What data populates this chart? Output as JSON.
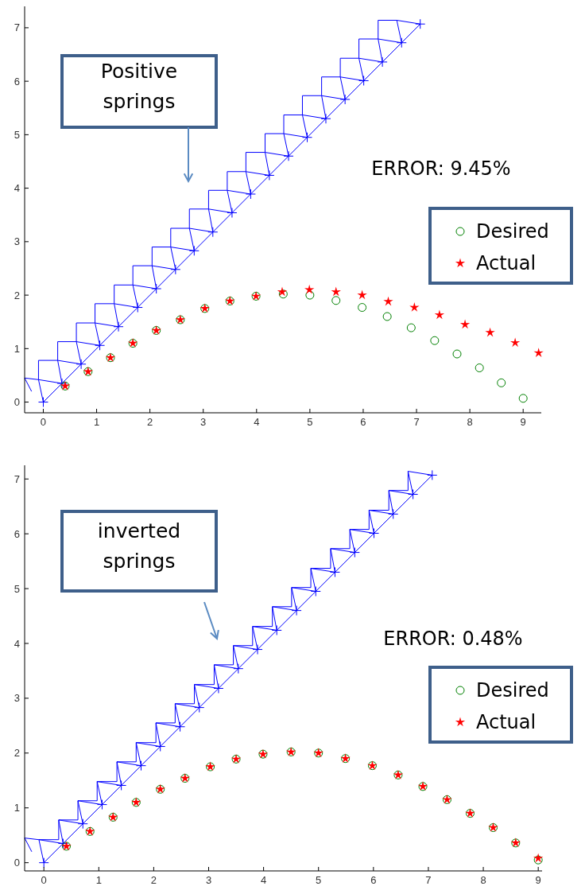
{
  "chart_data": [
    {
      "type": "scatter",
      "xlim": [
        -0.35,
        9.34
      ],
      "ylim": [
        -0.2,
        7.4
      ],
      "xticks": [
        0,
        1,
        2,
        3,
        4,
        5,
        6,
        7,
        8,
        9
      ],
      "yticks": [
        0,
        1,
        2,
        3,
        4,
        5,
        6,
        7
      ],
      "legend": "right",
      "annotations": [
        "Positive springs",
        "ERROR: 9.45%"
      ],
      "series": [
        {
          "type": "line",
          "color": "#0000ff",
          "marker": "cross",
          "x": [
            0,
            0.35,
            0.71,
            1.06,
            1.41,
            1.77,
            2.12,
            2.48,
            2.83,
            3.18,
            3.54,
            3.89,
            4.24,
            4.6,
            4.95,
            5.3,
            5.66,
            6.01,
            6.36,
            6.72,
            7.07
          ],
          "values": [
            0,
            0.35,
            0.71,
            1.06,
            1.41,
            1.77,
            2.12,
            2.48,
            2.83,
            3.18,
            3.54,
            3.89,
            4.24,
            4.6,
            4.95,
            5.3,
            5.66,
            6.01,
            6.36,
            6.72,
            7.07
          ]
        },
        {
          "type": "line",
          "color": "#0000ff",
          "marker": "none",
          "x": [
            -0.22,
            -0.35,
            -0.09,
            -0.09,
            0.27,
            0.27,
            0.62,
            0.62,
            0.97,
            0.97,
            1.33,
            1.33,
            1.68,
            1.68,
            2.04,
            2.04,
            2.39,
            2.39,
            2.74,
            2.74,
            3.1,
            3.1,
            3.45,
            3.45,
            3.8,
            3.8,
            4.16,
            4.16,
            4.51,
            4.51,
            4.86,
            4.86,
            5.22,
            5.22,
            5.57,
            5.57,
            5.92,
            5.92,
            6.28,
            6.28,
            6.63
          ],
          "values": [
            0.2,
            0.45,
            0.42,
            0.78,
            0.78,
            1.13,
            1.13,
            1.48,
            1.48,
            1.84,
            1.84,
            2.19,
            2.19,
            2.55,
            2.55,
            2.9,
            2.9,
            3.25,
            3.25,
            3.61,
            3.61,
            3.96,
            3.96,
            4.31,
            4.31,
            4.67,
            4.67,
            5.02,
            5.02,
            5.37,
            5.37,
            5.73,
            5.73,
            6.08,
            6.08,
            6.43,
            6.43,
            6.79,
            6.79,
            7.14,
            7.14
          ]
        },
        {
          "type": "line",
          "color": "#0000ff",
          "marker": "none",
          "x": [
            0,
            -0.09,
            0.35,
            0.27,
            0.71,
            0.62,
            1.06,
            0.97,
            1.41,
            1.33,
            1.77,
            1.68,
            2.12,
            2.04,
            2.48,
            2.39,
            2.83,
            2.74,
            3.18,
            3.1,
            3.54,
            3.45,
            3.89,
            3.8,
            4.24,
            4.16,
            4.6,
            4.51,
            4.95,
            4.86,
            5.3,
            5.22,
            5.66,
            5.57,
            6.01,
            5.92,
            6.36,
            6.28,
            6.72,
            6.63,
            7.07
          ],
          "values": [
            0,
            0.42,
            0.35,
            0.78,
            0.71,
            1.13,
            1.06,
            1.48,
            1.41,
            1.84,
            1.77,
            2.19,
            2.12,
            2.55,
            2.48,
            2.9,
            2.83,
            3.25,
            3.18,
            3.61,
            3.54,
            3.96,
            3.89,
            4.31,
            4.24,
            4.67,
            4.6,
            5.02,
            4.95,
            5.37,
            5.3,
            5.73,
            5.66,
            6.08,
            6.01,
            6.43,
            6.36,
            6.79,
            6.72,
            7.14,
            7.07
          ]
        },
        {
          "type": "scatter",
          "name": "Desired",
          "color": "#008000",
          "marker": "circle",
          "x": [
            0.41,
            0.84,
            1.26,
            1.68,
            2.12,
            2.57,
            3.03,
            3.5,
            3.99,
            4.5,
            5.0,
            5.49,
            5.98,
            6.45,
            6.9,
            7.34,
            7.76,
            8.18,
            8.59,
            9.0
          ],
          "values": [
            0.3,
            0.57,
            0.83,
            1.1,
            1.34,
            1.54,
            1.75,
            1.89,
            1.98,
            2.02,
            2.0,
            1.9,
            1.77,
            1.6,
            1.39,
            1.15,
            0.9,
            0.64,
            0.36,
            0.07
          ]
        },
        {
          "type": "scatter",
          "name": "Actual",
          "color": "#ff0000",
          "marker": "star",
          "x": [
            0.41,
            0.84,
            1.26,
            1.68,
            2.12,
            2.57,
            3.03,
            3.5,
            3.99,
            4.48,
            4.99,
            5.49,
            5.98,
            6.47,
            6.96,
            7.43,
            7.91,
            8.38,
            8.85,
            9.29
          ],
          "values": [
            0.3,
            0.57,
            0.83,
            1.1,
            1.34,
            1.54,
            1.75,
            1.89,
            1.98,
            2.06,
            2.1,
            2.06,
            2.0,
            1.88,
            1.77,
            1.63,
            1.45,
            1.3,
            1.11,
            0.92
          ]
        }
      ]
    },
    {
      "type": "scatter",
      "xlim": [
        -0.35,
        9.07
      ],
      "ylim": [
        -0.15,
        7.25
      ],
      "xticks": [
        0,
        1,
        2,
        3,
        4,
        5,
        6,
        7,
        8,
        9
      ],
      "yticks": [
        0,
        1,
        2,
        3,
        4,
        5,
        6,
        7
      ],
      "legend": "right",
      "annotations": [
        "inverted springs",
        "ERROR: 0.48%"
      ],
      "series": [
        {
          "type": "line",
          "color": "#0000ff",
          "marker": "cross",
          "x": [
            0,
            0.35,
            0.71,
            1.06,
            1.41,
            1.77,
            2.12,
            2.48,
            2.83,
            3.18,
            3.54,
            3.89,
            4.24,
            4.6,
            4.95,
            5.3,
            5.66,
            6.01,
            6.36,
            6.72,
            7.07
          ],
          "values": [
            0,
            0.35,
            0.71,
            1.06,
            1.41,
            1.77,
            2.12,
            2.48,
            2.83,
            3.18,
            3.54,
            3.89,
            4.24,
            4.6,
            4.95,
            5.3,
            5.66,
            6.01,
            6.36,
            6.72,
            7.07
          ]
        },
        {
          "type": "line",
          "color": "#0000ff",
          "marker": "none",
          "x": [
            -0.22,
            -0.35,
            -0.09,
            0.27,
            0.27,
            0.62,
            0.62,
            0.97,
            0.97,
            1.33,
            1.33,
            1.68,
            1.68,
            2.04,
            2.04,
            2.39,
            2.39,
            2.74,
            2.74,
            3.1,
            3.1,
            3.45,
            3.45,
            3.8,
            3.8,
            4.16,
            4.16,
            4.51,
            4.51,
            4.86,
            4.86,
            5.22,
            5.22,
            5.57,
            5.57,
            5.92,
            5.92,
            6.28,
            6.28,
            6.63,
            6.63
          ],
          "values": [
            0.2,
            0.45,
            0.42,
            0.42,
            0.78,
            0.78,
            1.13,
            1.13,
            1.48,
            1.48,
            1.84,
            1.84,
            2.19,
            2.19,
            2.55,
            2.55,
            2.9,
            2.9,
            3.25,
            3.25,
            3.61,
            3.61,
            3.96,
            3.96,
            4.31,
            4.31,
            4.67,
            4.67,
            5.02,
            5.02,
            5.37,
            5.37,
            5.73,
            5.73,
            6.08,
            6.08,
            6.43,
            6.43,
            6.79,
            6.79,
            7.14
          ]
        },
        {
          "type": "line",
          "color": "#0000ff",
          "marker": "none",
          "x": [
            0,
            -0.09,
            0.35,
            0.27,
            0.71,
            0.62,
            1.06,
            0.97,
            1.41,
            1.33,
            1.77,
            1.68,
            2.12,
            2.04,
            2.48,
            2.39,
            2.83,
            2.74,
            3.18,
            3.1,
            3.54,
            3.45,
            3.89,
            3.8,
            4.24,
            4.16,
            4.6,
            4.51,
            4.95,
            4.86,
            5.3,
            5.22,
            5.66,
            5.57,
            6.01,
            5.92,
            6.36,
            6.28,
            6.72,
            6.63,
            7.07
          ],
          "values": [
            0,
            0.42,
            0.35,
            0.78,
            0.71,
            1.13,
            1.06,
            1.48,
            1.41,
            1.84,
            1.77,
            2.19,
            2.12,
            2.55,
            2.48,
            2.9,
            2.83,
            3.25,
            3.18,
            3.61,
            3.54,
            3.96,
            3.89,
            4.31,
            4.24,
            4.67,
            4.6,
            5.02,
            4.95,
            5.37,
            5.3,
            5.73,
            5.66,
            6.08,
            6.01,
            6.43,
            6.36,
            6.79,
            6.72,
            7.14,
            7.07
          ]
        },
        {
          "type": "scatter",
          "name": "Desired",
          "color": "#008000",
          "marker": "circle",
          "x": [
            0.41,
            0.84,
            1.26,
            1.68,
            2.12,
            2.57,
            3.03,
            3.5,
            3.99,
            4.5,
            5.0,
            5.49,
            5.98,
            6.45,
            6.9,
            7.34,
            7.76,
            8.18,
            8.59,
            9.0
          ],
          "values": [
            0.3,
            0.57,
            0.83,
            1.1,
            1.34,
            1.54,
            1.75,
            1.89,
            1.98,
            2.02,
            2.0,
            1.9,
            1.77,
            1.6,
            1.39,
            1.15,
            0.9,
            0.64,
            0.36,
            0.05
          ]
        },
        {
          "type": "scatter",
          "name": "Actual",
          "color": "#ff0000",
          "marker": "star",
          "x": [
            0.41,
            0.84,
            1.26,
            1.68,
            2.12,
            2.57,
            3.03,
            3.5,
            3.99,
            4.5,
            5.0,
            5.49,
            5.98,
            6.45,
            6.9,
            7.34,
            7.76,
            8.18,
            8.59,
            9.0
          ],
          "values": [
            0.3,
            0.57,
            0.83,
            1.1,
            1.34,
            1.54,
            1.75,
            1.89,
            1.98,
            2.02,
            2.0,
            1.9,
            1.77,
            1.6,
            1.39,
            1.15,
            0.9,
            0.64,
            0.36,
            0.08
          ]
        }
      ]
    }
  ]
}
